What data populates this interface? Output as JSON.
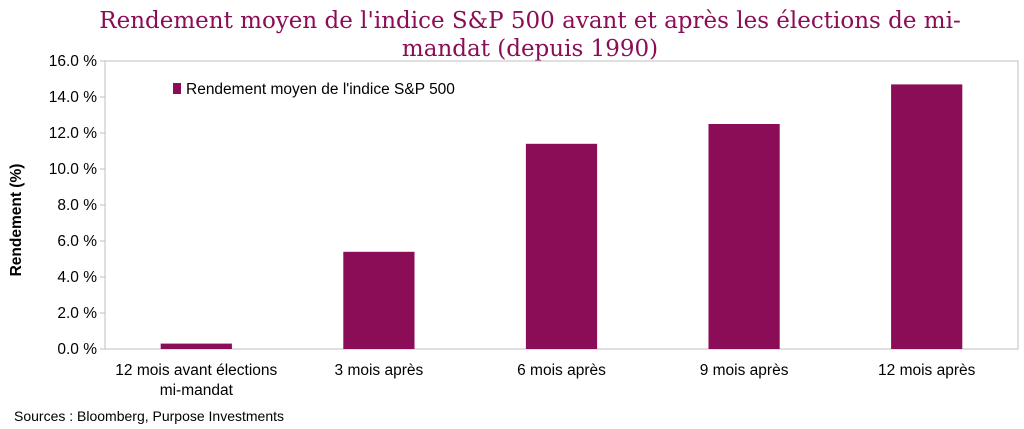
{
  "chart_data": {
    "type": "bar",
    "title_lines": [
      "Rendement moyen de l'indice S&P 500 avant et après les élections de mi-",
      "mandat (depuis 1990)"
    ],
    "ylabel": "Rendement (%)",
    "ylim": [
      0,
      16
    ],
    "yticks": [
      "0.0 %",
      "2.0 %",
      "4.0 %",
      "6.0 %",
      "8.0 %",
      "10.0 %",
      "12.0 %",
      "14.0 %",
      "16.0 %"
    ],
    "categories": [
      [
        "12 mois avant élections",
        "mi-mandat"
      ],
      [
        "3 mois après"
      ],
      [
        "6 mois après"
      ],
      [
        "9 mois après"
      ],
      [
        "12 mois après"
      ]
    ],
    "series": [
      {
        "name": "Rendement moyen de l'indice S&P 500",
        "values": [
          0.3,
          5.4,
          11.4,
          12.5,
          14.7
        ],
        "color": "#8b0d57"
      }
    ],
    "legend_position": "top-left",
    "grid": false
  },
  "footer": {
    "source": "Sources : Bloomberg, Purpose Investments"
  }
}
